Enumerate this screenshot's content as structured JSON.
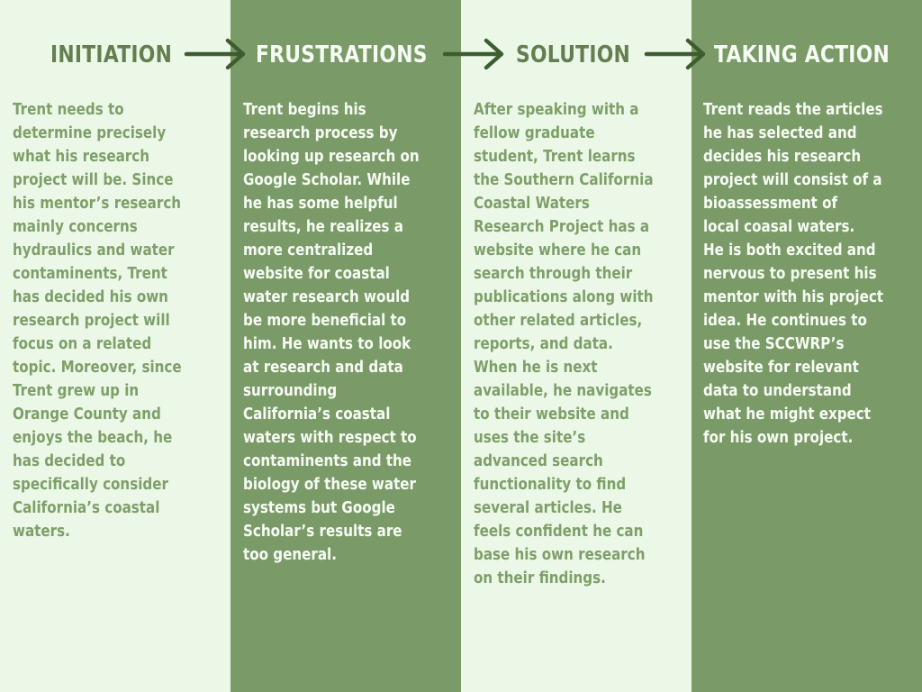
{
  "stages": [
    {
      "heading": "INITIATION",
      "text": "Trent needs to\ndetermine precisely\nwhat his research\nproject will be. Since\nhis mentor’s research\nmainly concerns\nhydraulics and water\ncontaminents, Trent\nhas decided his own\nresearch project will\nfocus on a related\ntopic. Moreover, since\nTrent grew up in\nOrange County and\nenjoys the beach, he\nhas decided to\nspecifically consider\nCalifornia’s coastal\nwaters."
    },
    {
      "heading": "FRUSTRATIONS",
      "text": "Trent begins his\nresearch process by\nlooking up research on\nGoogle Scholar. While\nhe has some helpful\nresults, he realizes a\nmore centralized\nwebsite for coastal\nwater research would\nbe more beneficial to\nhim. He wants to look\nat research and data\nsurrounding\nCalifornia’s coastal\nwaters with respect to\ncontaminents and the\nbiology of these water\nsystems but Google\nScholar’s results are\ntoo general."
    },
    {
      "heading": "SOLUTION",
      "text": "After speaking with a\nfellow graduate\nstudent, Trent learns\nthe Southern California\nCoastal Waters\nResearch Project has a\nwebsite where he can\nsearch through their\npublications along with\nother related articles,\nreports, and data.\nWhen he is next\navailable, he navigates\nto their website and\nuses the site’s\nadvanced search\nfunctionality to find\nseveral articles. He\nfeels confident he can\nbase his own research\non their findings."
    },
    {
      "heading": "TAKING ACTION",
      "text": "Trent reads the articles\nhe has selected and\ndecides his research\nproject will consist of a\nbioassessment of\nlocal coasal waters.\nHe is both excited and\nnervous to present his\nmentor with his project\nidea. He continues to\nuse the SCCWRP’s\nwebsite for relevant\ndata to understand\nwhat he might expect\nfor his own project."
    }
  ],
  "arrows": [
    {
      "icon": "arrow-right-icon"
    },
    {
      "icon": "arrow-right-icon"
    },
    {
      "icon": "arrow-right-icon"
    }
  ],
  "colors": {
    "light_column": "#ebf8e8",
    "dark_column": "#7a9b68",
    "light_heading": "#647e50",
    "light_text": "#7f9f69",
    "dark_text": "#f6fbf3",
    "arrow": "#3d5d30"
  }
}
